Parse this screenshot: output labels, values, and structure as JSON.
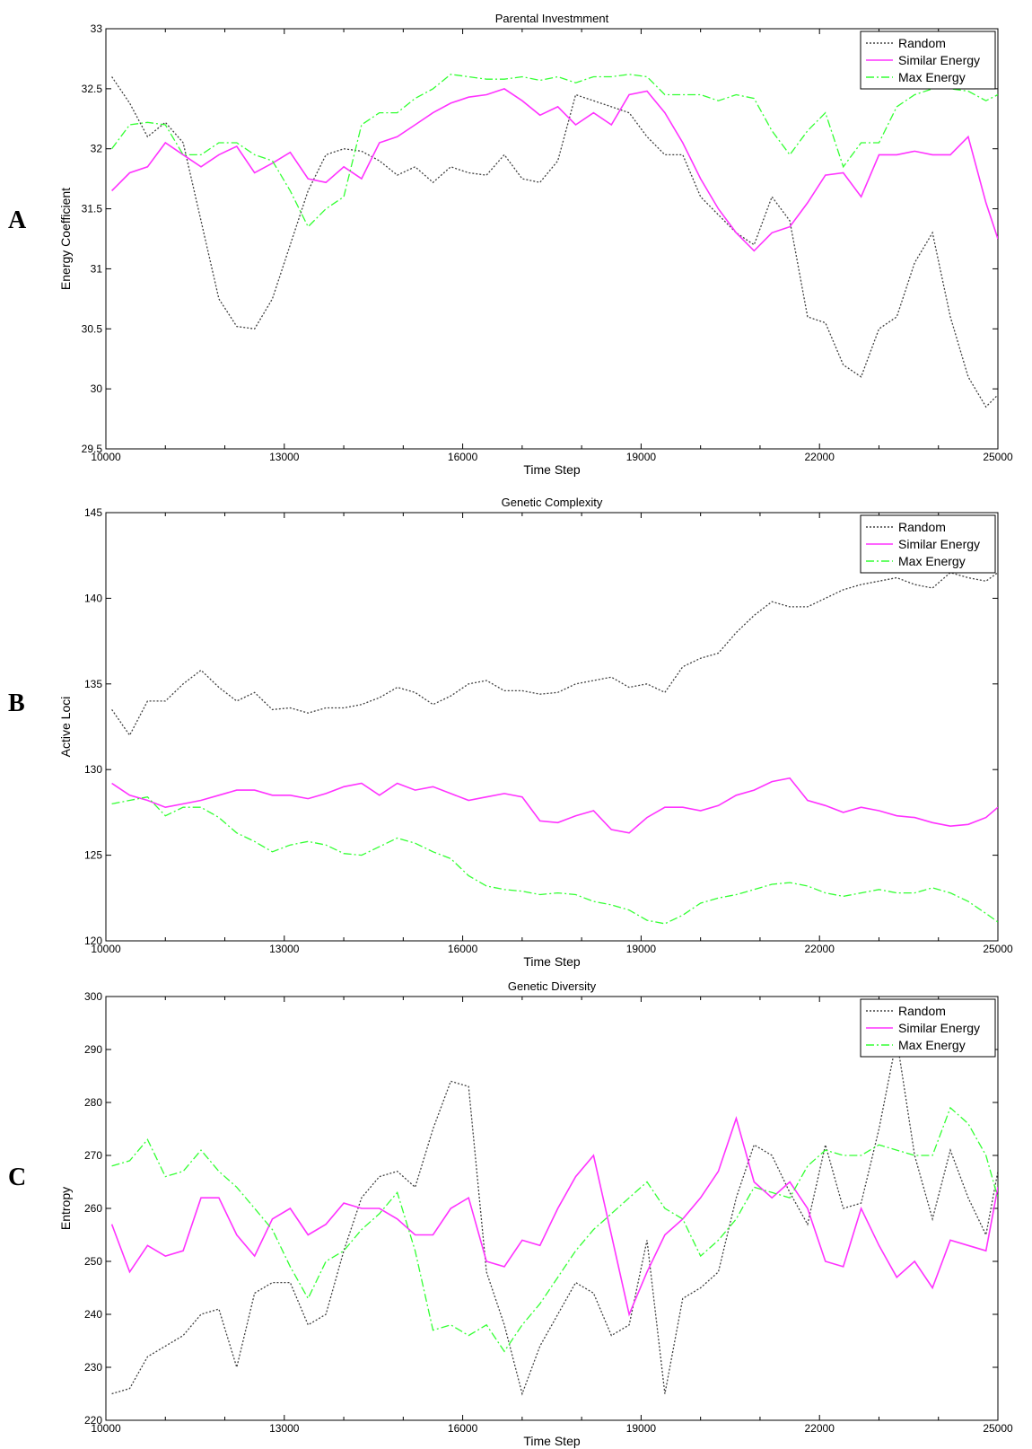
{
  "panel_labels": [
    "A",
    "B",
    "C"
  ],
  "chart_data": [
    {
      "type": "line",
      "title": "Parental Investmment",
      "xlabel": "Time Step",
      "ylabel": "Energy Coefficient",
      "xlim": [
        10000,
        25000
      ],
      "ylim": [
        29.5,
        33
      ],
      "xticks": [
        10000,
        13000,
        16000,
        19000,
        22000,
        25000
      ],
      "xtick_labels": [
        "10000",
        "13000",
        "16000",
        "19000",
        "22000",
        "25000"
      ],
      "yticks": [
        29.5,
        30,
        30.5,
        31,
        31.5,
        32,
        32.5,
        33
      ],
      "ytick_labels": [
        "29.5",
        "30",
        "30.5",
        "31",
        "31.5",
        "32",
        "32.5",
        "33"
      ],
      "legend_position": "top-right",
      "grid": false,
      "x": [
        10100,
        10400,
        10700,
        11000,
        11300,
        11600,
        11900,
        12200,
        12500,
        12800,
        13100,
        13400,
        13700,
        14000,
        14300,
        14600,
        14900,
        15200,
        15500,
        15800,
        16100,
        16400,
        16700,
        17000,
        17300,
        17600,
        17900,
        18200,
        18500,
        18800,
        19100,
        19400,
        19700,
        20000,
        20300,
        20600,
        20900,
        21200,
        21500,
        21800,
        22100,
        22400,
        22700,
        23000,
        23300,
        23600,
        23900,
        24200,
        24500,
        24800,
        25000
      ],
      "series": [
        {
          "name": "Random",
          "color": "#404040",
          "dash": "dotted",
          "values": [
            32.6,
            32.38,
            32.1,
            32.22,
            32.05,
            31.4,
            30.75,
            30.52,
            30.5,
            30.75,
            31.2,
            31.65,
            31.95,
            32.0,
            31.98,
            31.9,
            31.78,
            31.85,
            31.72,
            31.85,
            31.8,
            31.78,
            31.95,
            31.75,
            31.72,
            31.9,
            32.45,
            32.4,
            32.35,
            32.3,
            32.1,
            31.95,
            31.95,
            31.6,
            31.45,
            31.3,
            31.2,
            31.6,
            31.4,
            30.6,
            30.55,
            30.2,
            30.1,
            30.5,
            30.6,
            31.05,
            31.3,
            30.6,
            30.1,
            29.85,
            29.95
          ]
        },
        {
          "name": "Similar Energy",
          "color": "#ff33ff",
          "dash": "solid",
          "values": [
            31.65,
            31.8,
            31.85,
            32.05,
            31.95,
            31.85,
            31.95,
            32.02,
            31.8,
            31.88,
            31.97,
            31.75,
            31.72,
            31.85,
            31.75,
            32.05,
            32.1,
            32.2,
            32.3,
            32.38,
            32.43,
            32.45,
            32.5,
            32.4,
            32.28,
            32.35,
            32.2,
            32.3,
            32.2,
            32.45,
            32.48,
            32.3,
            32.05,
            31.75,
            31.5,
            31.3,
            31.15,
            31.3,
            31.35,
            31.55,
            31.78,
            31.8,
            31.6,
            31.95,
            31.95,
            31.98,
            31.95,
            31.95,
            32.1,
            31.55,
            31.25
          ]
        },
        {
          "name": "Max Energy",
          "color": "#33ff33",
          "dash": "dashdot",
          "values": [
            32.0,
            32.2,
            32.22,
            32.2,
            31.95,
            31.95,
            32.05,
            32.05,
            31.95,
            31.9,
            31.65,
            31.35,
            31.5,
            31.6,
            32.2,
            32.3,
            32.3,
            32.42,
            32.5,
            32.62,
            32.6,
            32.58,
            32.58,
            32.6,
            32.57,
            32.6,
            32.55,
            32.6,
            32.6,
            32.62,
            32.6,
            32.45,
            32.45,
            32.45,
            32.4,
            32.45,
            32.42,
            32.15,
            31.95,
            32.15,
            32.3,
            31.85,
            32.05,
            32.05,
            32.35,
            32.45,
            32.5,
            32.5,
            32.48,
            32.4,
            32.45
          ]
        }
      ]
    },
    {
      "type": "line",
      "title": "Genetic Complexity",
      "xlabel": "Time Step",
      "ylabel": "Active Loci",
      "xlim": [
        10000,
        25000
      ],
      "ylim": [
        120,
        145
      ],
      "xticks": [
        10000,
        13000,
        16000,
        19000,
        22000,
        25000
      ],
      "xtick_labels": [
        "10000",
        "13000",
        "16000",
        "19000",
        "22000",
        "25000"
      ],
      "yticks": [
        120,
        125,
        130,
        135,
        140,
        145
      ],
      "ytick_labels": [
        "120",
        "125",
        "130",
        "135",
        "140",
        "145"
      ],
      "legend_position": "top-right",
      "grid": false,
      "x": [
        10100,
        10400,
        10700,
        11000,
        11300,
        11600,
        11900,
        12200,
        12500,
        12800,
        13100,
        13400,
        13700,
        14000,
        14300,
        14600,
        14900,
        15200,
        15500,
        15800,
        16100,
        16400,
        16700,
        17000,
        17300,
        17600,
        17900,
        18200,
        18500,
        18800,
        19100,
        19400,
        19700,
        20000,
        20300,
        20600,
        20900,
        21200,
        21500,
        21800,
        22100,
        22400,
        22700,
        23000,
        23300,
        23600,
        23900,
        24200,
        24500,
        24800,
        25000
      ],
      "series": [
        {
          "name": "Random",
          "color": "#404040",
          "dash": "dotted",
          "values": [
            133.5,
            132.0,
            134.0,
            134.0,
            135.0,
            135.8,
            134.8,
            134.0,
            134.5,
            133.5,
            133.6,
            133.3,
            133.6,
            133.6,
            133.8,
            134.2,
            134.8,
            134.5,
            133.8,
            134.3,
            135.0,
            135.2,
            134.6,
            134.6,
            134.4,
            134.5,
            135.0,
            135.2,
            135.4,
            134.8,
            135.0,
            134.5,
            136.0,
            136.5,
            136.8,
            138.0,
            139.0,
            139.8,
            139.5,
            139.5,
            140.0,
            140.5,
            140.8,
            141.0,
            141.2,
            140.8,
            140.6,
            141.5,
            141.2,
            141.0,
            141.5
          ]
        },
        {
          "name": "Similar Energy",
          "color": "#ff33ff",
          "dash": "solid",
          "values": [
            129.2,
            128.5,
            128.2,
            127.8,
            128.0,
            128.2,
            128.5,
            128.8,
            128.8,
            128.5,
            128.5,
            128.3,
            128.6,
            129.0,
            129.2,
            128.5,
            129.2,
            128.8,
            129.0,
            128.6,
            128.2,
            128.4,
            128.6,
            128.4,
            127.0,
            126.9,
            127.3,
            127.6,
            126.5,
            126.3,
            127.2,
            127.8,
            127.8,
            127.6,
            127.9,
            128.5,
            128.8,
            129.3,
            129.5,
            128.2,
            127.9,
            127.5,
            127.8,
            127.6,
            127.3,
            127.2,
            126.9,
            126.7,
            126.8,
            127.2,
            127.8
          ]
        },
        {
          "name": "Max Energy",
          "color": "#33ff33",
          "dash": "dashdot",
          "values": [
            128.0,
            128.2,
            128.4,
            127.3,
            127.8,
            127.8,
            127.2,
            126.3,
            125.8,
            125.2,
            125.6,
            125.8,
            125.6,
            125.1,
            125.0,
            125.5,
            126.0,
            125.7,
            125.2,
            124.8,
            123.8,
            123.2,
            123.0,
            122.9,
            122.7,
            122.8,
            122.7,
            122.3,
            122.1,
            121.8,
            121.2,
            121.0,
            121.5,
            122.2,
            122.5,
            122.7,
            123.0,
            123.3,
            123.4,
            123.2,
            122.8,
            122.6,
            122.8,
            123.0,
            122.8,
            122.8,
            123.1,
            122.8,
            122.3,
            121.6,
            121.1
          ]
        }
      ]
    },
    {
      "type": "line",
      "title": "Genetic Diversity",
      "xlabel": "Time Step",
      "ylabel": "Entropy",
      "xlim": [
        10000,
        25000
      ],
      "ylim": [
        220,
        300
      ],
      "xticks": [
        10000,
        13000,
        16000,
        19000,
        22000,
        25000
      ],
      "xtick_labels": [
        "10000",
        "13000",
        "16000",
        "19000",
        "22000",
        "25000"
      ],
      "yticks": [
        220,
        230,
        240,
        250,
        260,
        270,
        280,
        290,
        300
      ],
      "ytick_labels": [
        "220",
        "230",
        "240",
        "250",
        "260",
        "270",
        "280",
        "290",
        "300"
      ],
      "legend_position": "top-right",
      "grid": false,
      "x": [
        10100,
        10400,
        10700,
        11000,
        11300,
        11600,
        11900,
        12200,
        12500,
        12800,
        13100,
        13400,
        13700,
        14000,
        14300,
        14600,
        14900,
        15200,
        15500,
        15800,
        16100,
        16400,
        16700,
        17000,
        17300,
        17600,
        17900,
        18200,
        18500,
        18800,
        19100,
        19400,
        19700,
        20000,
        20300,
        20600,
        20900,
        21200,
        21500,
        21800,
        22100,
        22400,
        22700,
        23000,
        23300,
        23600,
        23900,
        24200,
        24500,
        24800,
        25000
      ],
      "series": [
        {
          "name": "Random",
          "color": "#404040",
          "dash": "dotted",
          "values": [
            225,
            226,
            232,
            234,
            236,
            240,
            241,
            230,
            244,
            246,
            246,
            238,
            240,
            252,
            262,
            266,
            267,
            264,
            275,
            284,
            283,
            248,
            238,
            225,
            234,
            240,
            246,
            244,
            236,
            238,
            254,
            225,
            243,
            245,
            248,
            262,
            272,
            270,
            263,
            257,
            272,
            260,
            261,
            275,
            292,
            270,
            258,
            271,
            262,
            255,
            267
          ]
        },
        {
          "name": "Similar Energy",
          "color": "#ff33ff",
          "dash": "solid",
          "values": [
            257,
            248,
            253,
            251,
            252,
            262,
            262,
            255,
            251,
            258,
            260,
            255,
            257,
            261,
            260,
            260,
            258,
            255,
            255,
            260,
            262,
            250,
            249,
            254,
            253,
            260,
            266,
            270,
            255,
            240,
            248,
            255,
            258,
            262,
            267,
            277,
            265,
            262,
            265,
            260,
            250,
            249,
            260,
            253,
            247,
            250,
            245,
            254,
            253,
            252,
            264
          ]
        },
        {
          "name": "Max Energy",
          "color": "#33ff33",
          "dash": "dashdot",
          "values": [
            268,
            269,
            273,
            266,
            267,
            271,
            267,
            264,
            260,
            256,
            249,
            243,
            250,
            252,
            256,
            259,
            263,
            252,
            237,
            238,
            236,
            238,
            233,
            238,
            242,
            247,
            252,
            256,
            259,
            262,
            265,
            260,
            258,
            251,
            254,
            258,
            264,
            263,
            262,
            268,
            271,
            270,
            270,
            272,
            271,
            270,
            270,
            279,
            276,
            270,
            262
          ]
        }
      ]
    }
  ]
}
